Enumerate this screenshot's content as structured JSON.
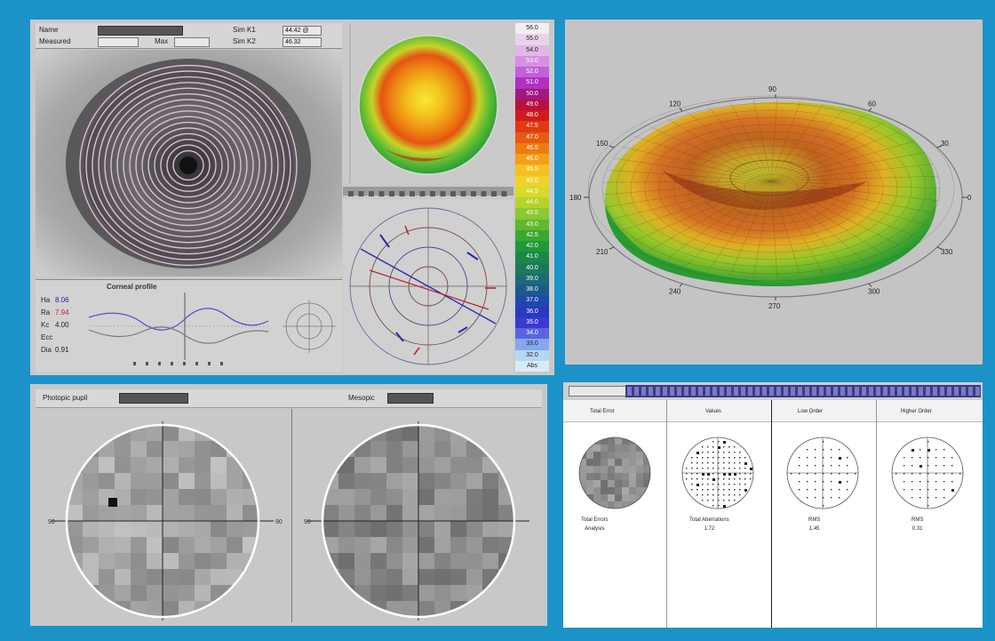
{
  "exam_header": {
    "name_label": "Name",
    "name_value": "",
    "left_label": "Sim K1",
    "left_value": "44.42 @",
    "right_label": "Sim K2",
    "right_value": "46.32",
    "measured_label": "Measured",
    "measured_value": "",
    "max_label": "Max",
    "max_value": ""
  },
  "bottom_left_header": {
    "left_label": "Photopic pupil",
    "right_label": "Mesopic"
  },
  "topo3d_labels": [
    "90",
    "60",
    "120",
    "30",
    "150",
    "0",
    "180",
    "210",
    "330",
    "240",
    "300",
    "270"
  ],
  "topo_legend_values": [
    "56.0",
    "55.0",
    "54.0",
    "53.0",
    "52.0",
    "51.0",
    "50.0",
    "49.0",
    "48.0",
    "47.5",
    "47.0",
    "46.5",
    "46.0",
    "45.5",
    "45.0",
    "44.5",
    "44.0",
    "43.5",
    "43.0",
    "42.5",
    "42.0",
    "41.0",
    "40.0",
    "39.0",
    "38.0",
    "37.0",
    "36.0",
    "35.0",
    "34.0",
    "33.0",
    "32.0",
    "Abs"
  ],
  "topo_legend_colors": [
    "#f0f0f0",
    "#e8d4e8",
    "#e2b6e6",
    "#d690e0",
    "#c260d8",
    "#b030c0",
    "#a01880",
    "#b81040",
    "#d01c1c",
    "#e03a10",
    "#e85a10",
    "#ee7c14",
    "#f2a018",
    "#f4c020",
    "#ecd42a",
    "#d8d82a",
    "#b4d22a",
    "#8cc830",
    "#60b830",
    "#3aa830",
    "#20983a",
    "#1a8848",
    "#1a7a5a",
    "#1a6c72",
    "#1c5a8c",
    "#2048a8",
    "#2a38c0",
    "#3a3ad0",
    "#5a64e0",
    "#86a8ec",
    "#b4d8f4",
    "#d8ecf8"
  ],
  "bottom_right": {
    "panels": [
      {
        "title": "Total Error",
        "caption": "Total Errors\nAnalysis"
      },
      {
        "title": "Values",
        "caption": "Total Aberrations\n1.72"
      },
      {
        "title": "Low Order",
        "caption": "RMS\n1.45"
      },
      {
        "title": "Higher Order",
        "caption": "RMS\n0.31"
      }
    ]
  },
  "profile": {
    "title": "Corneal profile",
    "rows": [
      "Ha",
      "Ra",
      "Kc",
      "Ecc",
      "Dia"
    ],
    "values": [
      "8.06",
      "7.94",
      "4.00",
      "",
      "0.91"
    ],
    "mid_a": "",
    "mid_b": ""
  }
}
